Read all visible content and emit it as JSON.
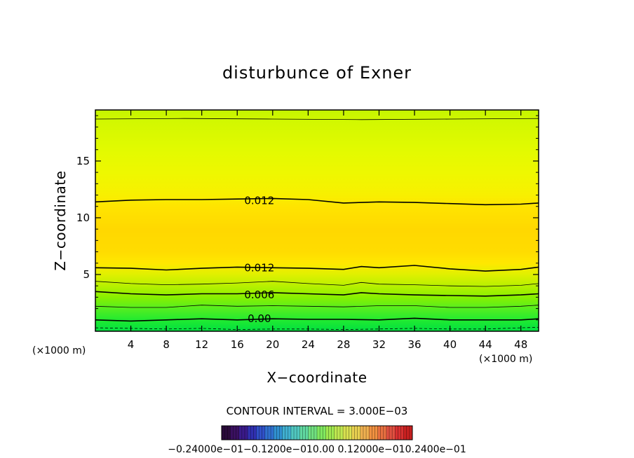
{
  "chart_data": {
    "type": "heatmap",
    "title": "disturbunce of Exner",
    "xlabel": "X−coordinate",
    "ylabel": "Z−coordinate",
    "x_unit_left": "(×1000 m)",
    "x_unit_right": "(×1000 m)",
    "xlim": [
      0,
      50
    ],
    "ylim": [
      0,
      19.5
    ],
    "x_ticks": [
      4,
      8,
      12,
      16,
      20,
      24,
      28,
      32,
      36,
      40,
      44,
      48
    ],
    "x_tick_labels": [
      "4",
      "8",
      "12",
      "16",
      "20",
      "24",
      "28",
      "32",
      "36",
      "40",
      "44",
      "48"
    ],
    "y_ticks": [
      5,
      10,
      15
    ],
    "y_tick_labels": [
      "5",
      "10",
      "15"
    ],
    "contour_interval_text": "CONTOUR INTERVAL = 3.000E−03",
    "contour_labels": [
      {
        "text": "0.012",
        "x": 18.5,
        "z": 11.5
      },
      {
        "text": "0.012",
        "x": 18.5,
        "z": 5.6
      },
      {
        "text": "0.006",
        "x": 18.5,
        "z": 3.2
      },
      {
        "text": "0.00",
        "x": 18.5,
        "z": 1.1
      }
    ],
    "contours": [
      {
        "value": 0.012,
        "x": [
          0,
          4,
          8,
          12,
          16,
          20,
          24,
          28,
          32,
          36,
          40,
          44,
          48,
          50
        ],
        "z": [
          11.4,
          11.55,
          11.6,
          11.6,
          11.65,
          11.7,
          11.6,
          11.3,
          11.4,
          11.35,
          11.25,
          11.15,
          11.2,
          11.3
        ]
      },
      {
        "value": 0.012,
        "x": [
          0,
          4,
          8,
          12,
          16,
          20,
          24,
          28,
          30,
          32,
          36,
          40,
          44,
          48,
          50
        ],
        "z": [
          5.6,
          5.55,
          5.4,
          5.55,
          5.65,
          5.6,
          5.55,
          5.45,
          5.7,
          5.6,
          5.8,
          5.5,
          5.3,
          5.45,
          5.65
        ]
      },
      {
        "value": 0.009,
        "x": [
          0,
          4,
          8,
          12,
          16,
          20,
          24,
          28,
          30,
          32,
          36,
          40,
          44,
          48,
          50
        ],
        "z": [
          4.4,
          4.2,
          4.1,
          4.15,
          4.25,
          4.4,
          4.2,
          4.05,
          4.3,
          4.15,
          4.1,
          4.0,
          3.95,
          4.05,
          4.2
        ]
      },
      {
        "value": 0.006,
        "x": [
          0,
          4,
          8,
          12,
          16,
          20,
          24,
          28,
          30,
          32,
          36,
          40,
          44,
          48,
          50
        ],
        "z": [
          3.5,
          3.3,
          3.2,
          3.3,
          3.3,
          3.4,
          3.3,
          3.2,
          3.4,
          3.3,
          3.2,
          3.15,
          3.1,
          3.2,
          3.3
        ]
      },
      {
        "value": 0.003,
        "x": [
          0,
          4,
          8,
          12,
          16,
          20,
          24,
          28,
          32,
          36,
          40,
          44,
          48,
          50
        ],
        "z": [
          2.2,
          2.1,
          2.1,
          2.3,
          2.2,
          2.25,
          2.2,
          2.15,
          2.25,
          2.25,
          2.1,
          2.1,
          2.2,
          2.3
        ]
      },
      {
        "value": 0.0,
        "x": [
          0,
          4,
          8,
          12,
          16,
          20,
          24,
          28,
          32,
          36,
          40,
          44,
          48,
          50
        ],
        "z": [
          1.0,
          0.9,
          1.0,
          1.1,
          1.0,
          1.1,
          1.05,
          1.05,
          1.0,
          1.15,
          1.0,
          1.0,
          1.0,
          1.1
        ]
      },
      {
        "value": 0.012,
        "x": [
          0,
          10,
          20,
          30,
          40,
          50
        ],
        "z": [
          18.7,
          18.75,
          18.7,
          18.65,
          18.7,
          18.75
        ]
      }
    ],
    "dashed_contour": {
      "value": -0.003,
      "x": [
        0,
        4,
        8,
        12,
        16,
        20,
        24,
        28,
        32,
        36,
        40,
        44,
        48,
        50
      ],
      "z": [
        0.3,
        0.25,
        0.2,
        0.25,
        0.15,
        0.2,
        0.2,
        0.15,
        0.2,
        0.25,
        0.2,
        0.2,
        0.3,
        0.35
      ]
    },
    "field_bands": [
      {
        "z": 0.0,
        "color": "#00e040"
      },
      {
        "z": 1.0,
        "color": "#22ea30"
      },
      {
        "z": 2.0,
        "color": "#55ee20"
      },
      {
        "z": 3.0,
        "color": "#88f000"
      },
      {
        "z": 4.0,
        "color": "#b8f000"
      },
      {
        "z": 5.0,
        "color": "#e0f000"
      },
      {
        "z": 6.0,
        "color": "#ffe800"
      },
      {
        "z": 7.0,
        "color": "#ffdc00"
      },
      {
        "z": 9.0,
        "color": "#ffd800"
      },
      {
        "z": 11.0,
        "color": "#ffe400"
      },
      {
        "z": 12.0,
        "color": "#f8f000"
      },
      {
        "z": 14.0,
        "color": "#eef800"
      },
      {
        "z": 16.0,
        "color": "#e2fa00"
      },
      {
        "z": 18.5,
        "color": "#d2f800"
      },
      {
        "z": 19.5,
        "color": "#c4f400"
      }
    ],
    "colorbar": {
      "label": "−0.24000e−01",
      "overlapped_labels_text": "−0.24000e−01 −0.12000e−01 0.00000 0.12000e−01 0.24000e−01",
      "label_overlap_display": "−0.24000e−01​−0.1200e−010.00 0.12000e−01​0.2400e−01",
      "colors": [
        "#2a0a3a",
        "#3a1060",
        "#3a1a8a",
        "#3030b0",
        "#3050c8",
        "#3070d0",
        "#3090d0",
        "#40b0d0",
        "#50c8c0",
        "#60d8a0",
        "#70e080",
        "#80e860",
        "#a0e850",
        "#c0e850",
        "#d8e050",
        "#e8d050",
        "#f0b050",
        "#f09040",
        "#e87040",
        "#e05040",
        "#d83030",
        "#c82020"
      ]
    }
  }
}
